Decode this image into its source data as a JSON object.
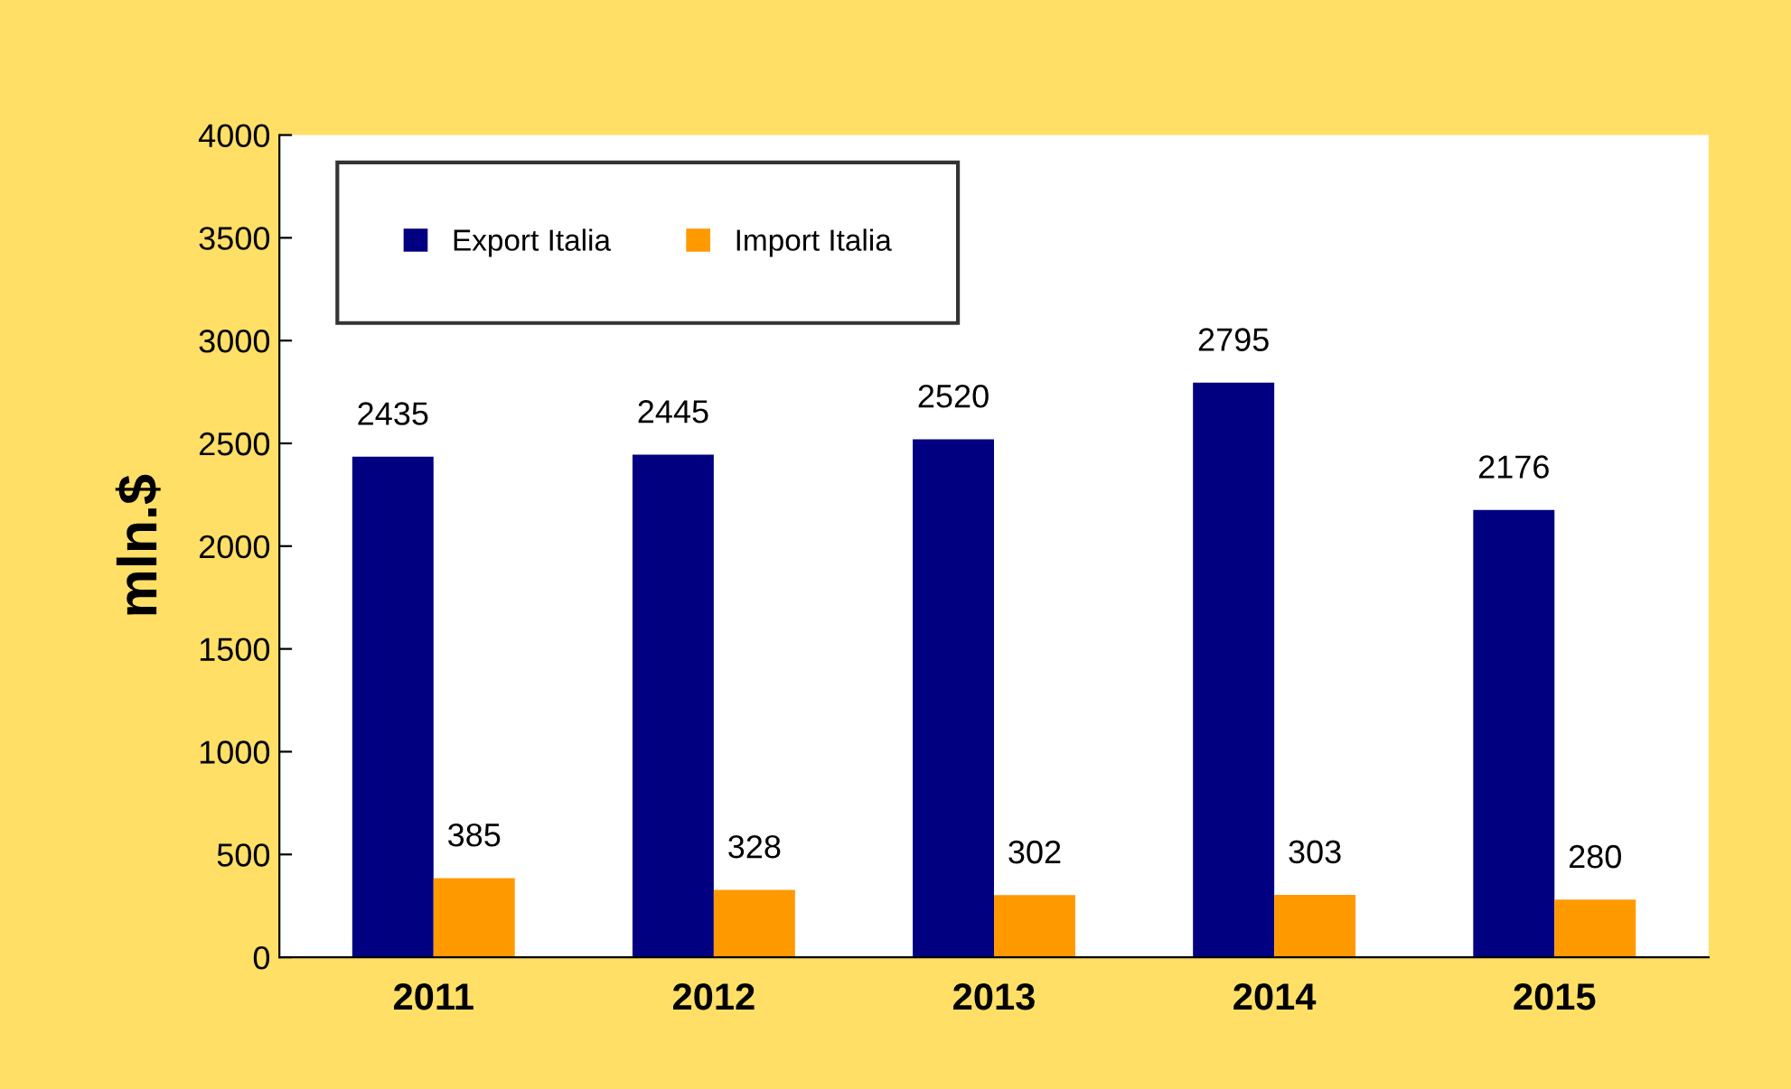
{
  "chart_data": {
    "type": "bar",
    "ylabel": "mln.$",
    "categories": [
      "2011",
      "2012",
      "2013",
      "2014",
      "2015"
    ],
    "series": [
      {
        "name": "Export Italia",
        "color": "#000080",
        "values": [
          2435,
          2445,
          2520,
          2795,
          2176
        ]
      },
      {
        "name": "Import Italia",
        "color": "#ff9900",
        "values": [
          385,
          328,
          302,
          303,
          280
        ]
      }
    ],
    "ylim": [
      0,
      4000
    ],
    "yticks": [
      0,
      500,
      1000,
      1500,
      2000,
      2500,
      3000,
      3500,
      4000
    ],
    "grid": false,
    "legend": "top left",
    "data_labels": true
  }
}
